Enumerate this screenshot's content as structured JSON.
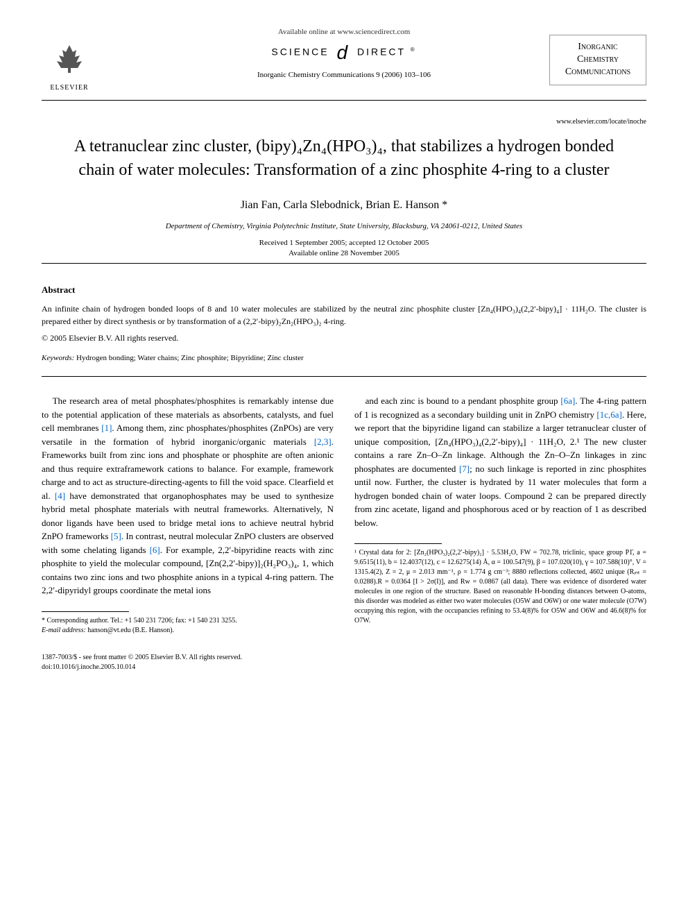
{
  "header": {
    "available_online": "Available online at www.sciencedirect.com",
    "science_label_1": "SCIENCE",
    "science_label_2": "DIRECT",
    "elsevier": "ELSEVIER",
    "journal_ref": "Inorganic Chemistry Communications 9 (2006) 103–106",
    "journal_logo_line1": "Inorganic",
    "journal_logo_line2": "Chemistry",
    "journal_logo_line3": "Communications",
    "journal_url": "www.elsevier.com/locate/inoche"
  },
  "article": {
    "title": "A tetranuclear zinc cluster, (bipy)₄Zn₄(HPO₃)₄, that stabilizes a hydrogen bonded chain of water molecules: Transformation of a zinc phosphite 4-ring to a cluster",
    "authors": "Jian Fan, Carla Slebodnick, Brian E. Hanson *",
    "affiliation": "Department of Chemistry, Virginia Polytechnic Institute, State University, Blacksburg, VA 24061-0212, United States",
    "received": "Received 1 September 2005; accepted 12 October 2005",
    "available": "Available online 28 November 2005"
  },
  "abstract": {
    "heading": "Abstract",
    "text": "An infinite chain of hydrogen bonded loops of 8 and 10 water molecules are stabilized by the neutral zinc phosphite cluster [Zn₄(HPO₃)₄(2,2′-bipy)₄] · 11H₂O. The cluster is prepared either by direct synthesis or by transformation of a (2,2′-bipy)₂Zn₂(HPO₃)₂ 4-ring.",
    "copyright": "© 2005 Elsevier B.V. All rights reserved.",
    "keywords_label": "Keywords:",
    "keywords": "Hydrogen bonding; Water chains; Zinc phosphite; Bipyridine; Zinc cluster"
  },
  "body": {
    "col1": "The research area of metal phosphates/phosphites is remarkably intense due to the potential application of these materials as absorbents, catalysts, and fuel cell membranes [1]. Among them, zinc phosphates/phosphites (ZnPOs) are very versatile in the formation of hybrid inorganic/organic materials [2,3]. Frameworks built from zinc ions and phosphate or phosphite are often anionic and thus require extraframework cations to balance. For example, framework charge and to act as structure-directing-agents to fill the void space. Clearfield et al. [4] have demonstrated that organophosphates may be used to synthesize hybrid metal phosphate materials with neutral frameworks. Alternatively, N donor ligands have been used to bridge metal ions to achieve neutral hybrid ZnPO frameworks [5]. In contrast, neutral molecular ZnPO clusters are observed with some chelating ligands [6]. For example, 2,2′-bipyridine reacts with zinc phosphite to yield the molecular compound, [Zn(2,2′-bipy)]₂(H₂PO₃)₄, 1, which contains two zinc ions and two phosphite anions in a typical 4-ring pattern. The 2,2′-dipyridyl groups coordinate the metal ions",
    "col2": "and each zinc is bound to a pendant phosphite group [6a]. The 4-ring pattern of 1 is recognized as a secondary building unit in ZnPO chemistry [1c,6a]. Here, we report that the bipyridine ligand can stabilize a larger tetranuclear cluster of unique composition, [Zn₄(HPO₃)₄(2,2′-bipy)₄] · 11H₂O, 2.¹ The new cluster contains a rare Zn–O–Zn linkage. Although the Zn–O–Zn linkages in zinc phosphates are documented [7]; no such linkage is reported in zinc phosphites until now. Further, the cluster is hydrated by 11 water molecules that form a hydrogen bonded chain of water loops. Compound 2 can be prepared directly from zinc acetate, ligand and phosphorous aced or by reaction of 1 as described below."
  },
  "footnotes": {
    "corresponding": "* Corresponding author. Tel.: +1 540 231 7206; fax: +1 540 231 3255.",
    "email_label": "E-mail address:",
    "email": "hanson@vt.edu (B.E. Hanson).",
    "crystal": "¹ Crystal data for 2: [Zn₂(HPO₃)₂(2,2′-bipy)₂] · 5.53H₂O, FW = 702.78, triclinic, space group P1̄, a = 9.6515(11), b = 12.4037(12), c = 12.6275(14) Å, α = 100.547(9), β = 107.020(10), γ = 107.588(10)°, V = 1315.4(2), Z = 2, μ = 2.013 mm⁻¹, ρ = 1.774 g cm⁻³; 8880 reflections collected, 4602 unique (Rᵢₙₜ = 0.0288).R = 0.0364 [I > 2σ(I)], and Rw = 0.0867 (all data). There was evidence of disordered water molecules in one region of the structure. Based on reasonable H-bonding distances between O-atoms, this disorder was modeled as either two water molecules (O5W and O6W) or one water molecule (O7W) occupying this region, with the occupancies refining to 53.4(8)% for O5W and O6W and 46.6(8)% for O7W."
  },
  "footer": {
    "issn": "1387-7003/$ - see front matter © 2005 Elsevier B.V. All rights reserved.",
    "doi": "doi:10.1016/j.inoche.2005.10.014"
  },
  "colors": {
    "link": "#0066cc",
    "text": "#000000",
    "background": "#ffffff"
  }
}
